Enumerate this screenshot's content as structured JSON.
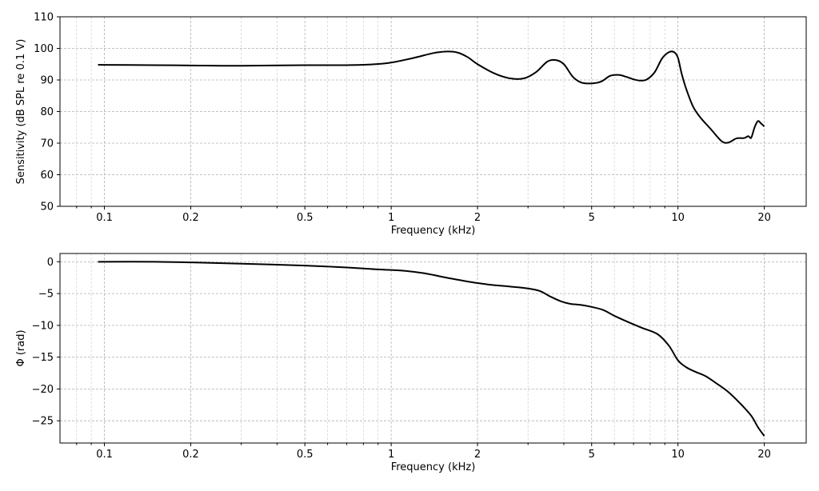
{
  "chart_data": [
    {
      "type": "line",
      "xscale": "log",
      "xlabel": "Frequency (kHz)",
      "ylabel": "Sensitivity (dB SPL re 0.1 V)",
      "xlim": [
        0.07,
        28
      ],
      "ylim": [
        50,
        110
      ],
      "grid": true,
      "xticks": [
        0.1,
        0.2,
        0.5,
        1,
        2,
        5,
        10,
        20
      ],
      "xtick_labels": [
        "0.1",
        "0.2",
        "0.5",
        "1",
        "2",
        "5",
        "10",
        "20"
      ],
      "yticks": [
        50,
        60,
        70,
        80,
        90,
        100,
        110
      ],
      "ytick_labels": [
        "50",
        "60",
        "70",
        "80",
        "90",
        "100",
        "110"
      ],
      "series": [
        {
          "color": "#000000",
          "x": [
            0.095,
            0.15,
            0.2,
            0.3,
            0.5,
            0.7,
            0.85,
            1.0,
            1.2,
            1.4,
            1.55,
            1.7,
            1.85,
            2.0,
            2.3,
            2.6,
            2.9,
            3.2,
            3.5,
            3.75,
            4.0,
            4.3,
            4.6,
            5.0,
            5.4,
            5.8,
            6.2,
            6.6,
            7.0,
            7.4,
            7.8,
            8.3,
            8.8,
            9.3,
            9.7,
            10.0,
            10.3,
            10.7,
            11.3,
            12.0,
            13.0,
            14.2,
            15.0,
            16.0,
            17.0,
            17.6,
            18.0,
            18.5,
            19.0,
            19.5,
            20.0
          ],
          "y": [
            94.8,
            94.7,
            94.6,
            94.5,
            94.7,
            94.7,
            94.9,
            95.5,
            97.0,
            98.5,
            99.0,
            98.7,
            97.2,
            95.0,
            92.0,
            90.5,
            90.5,
            92.5,
            95.8,
            96.3,
            95.0,
            91.0,
            89.2,
            88.9,
            89.5,
            91.3,
            91.6,
            91.0,
            90.2,
            89.8,
            90.2,
            92.5,
            96.8,
            98.8,
            98.8,
            97.0,
            92.0,
            87.0,
            81.5,
            78.0,
            74.5,
            70.6,
            70.2,
            71.5,
            71.6,
            72.2,
            71.7,
            75.0,
            77.0,
            76.2,
            75.3
          ]
        }
      ]
    },
    {
      "type": "line",
      "xscale": "log",
      "xlabel": "Frequency (kHz)",
      "ylabel": "Φ (rad)",
      "xlim": [
        0.07,
        28
      ],
      "ylim": [
        -28.5,
        1.3
      ],
      "grid": true,
      "xticks": [
        0.1,
        0.2,
        0.5,
        1,
        2,
        5,
        10,
        20
      ],
      "xtick_labels": [
        "0.1",
        "0.2",
        "0.5",
        "1",
        "2",
        "5",
        "10",
        "20"
      ],
      "yticks": [
        0,
        -5,
        -10,
        -15,
        -20,
        -25
      ],
      "ytick_labels": [
        "0",
        "−5",
        "−10",
        "−15",
        "−20",
        "−25"
      ],
      "series": [
        {
          "color": "#000000",
          "x": [
            0.095,
            0.15,
            0.2,
            0.3,
            0.5,
            0.7,
            0.9,
            1.1,
            1.3,
            1.6,
            1.9,
            2.2,
            2.6,
            3.0,
            3.3,
            3.6,
            3.9,
            4.2,
            4.6,
            5.0,
            5.5,
            6.0,
            6.8,
            7.5,
            8.5,
            9.3,
            10.0,
            10.7,
            11.5,
            12.5,
            13.8,
            15.0,
            16.5,
            18.0,
            19.0,
            20.0
          ],
          "y": [
            0.0,
            0.0,
            -0.1,
            -0.3,
            -0.6,
            -0.9,
            -1.2,
            -1.4,
            -1.8,
            -2.6,
            -3.2,
            -3.6,
            -3.9,
            -4.2,
            -4.6,
            -5.5,
            -6.2,
            -6.6,
            -6.8,
            -7.1,
            -7.6,
            -8.5,
            -9.6,
            -10.4,
            -11.4,
            -13.2,
            -15.5,
            -16.6,
            -17.3,
            -18.0,
            -19.3,
            -20.5,
            -22.3,
            -24.2,
            -26.0,
            -27.4
          ]
        }
      ]
    }
  ]
}
